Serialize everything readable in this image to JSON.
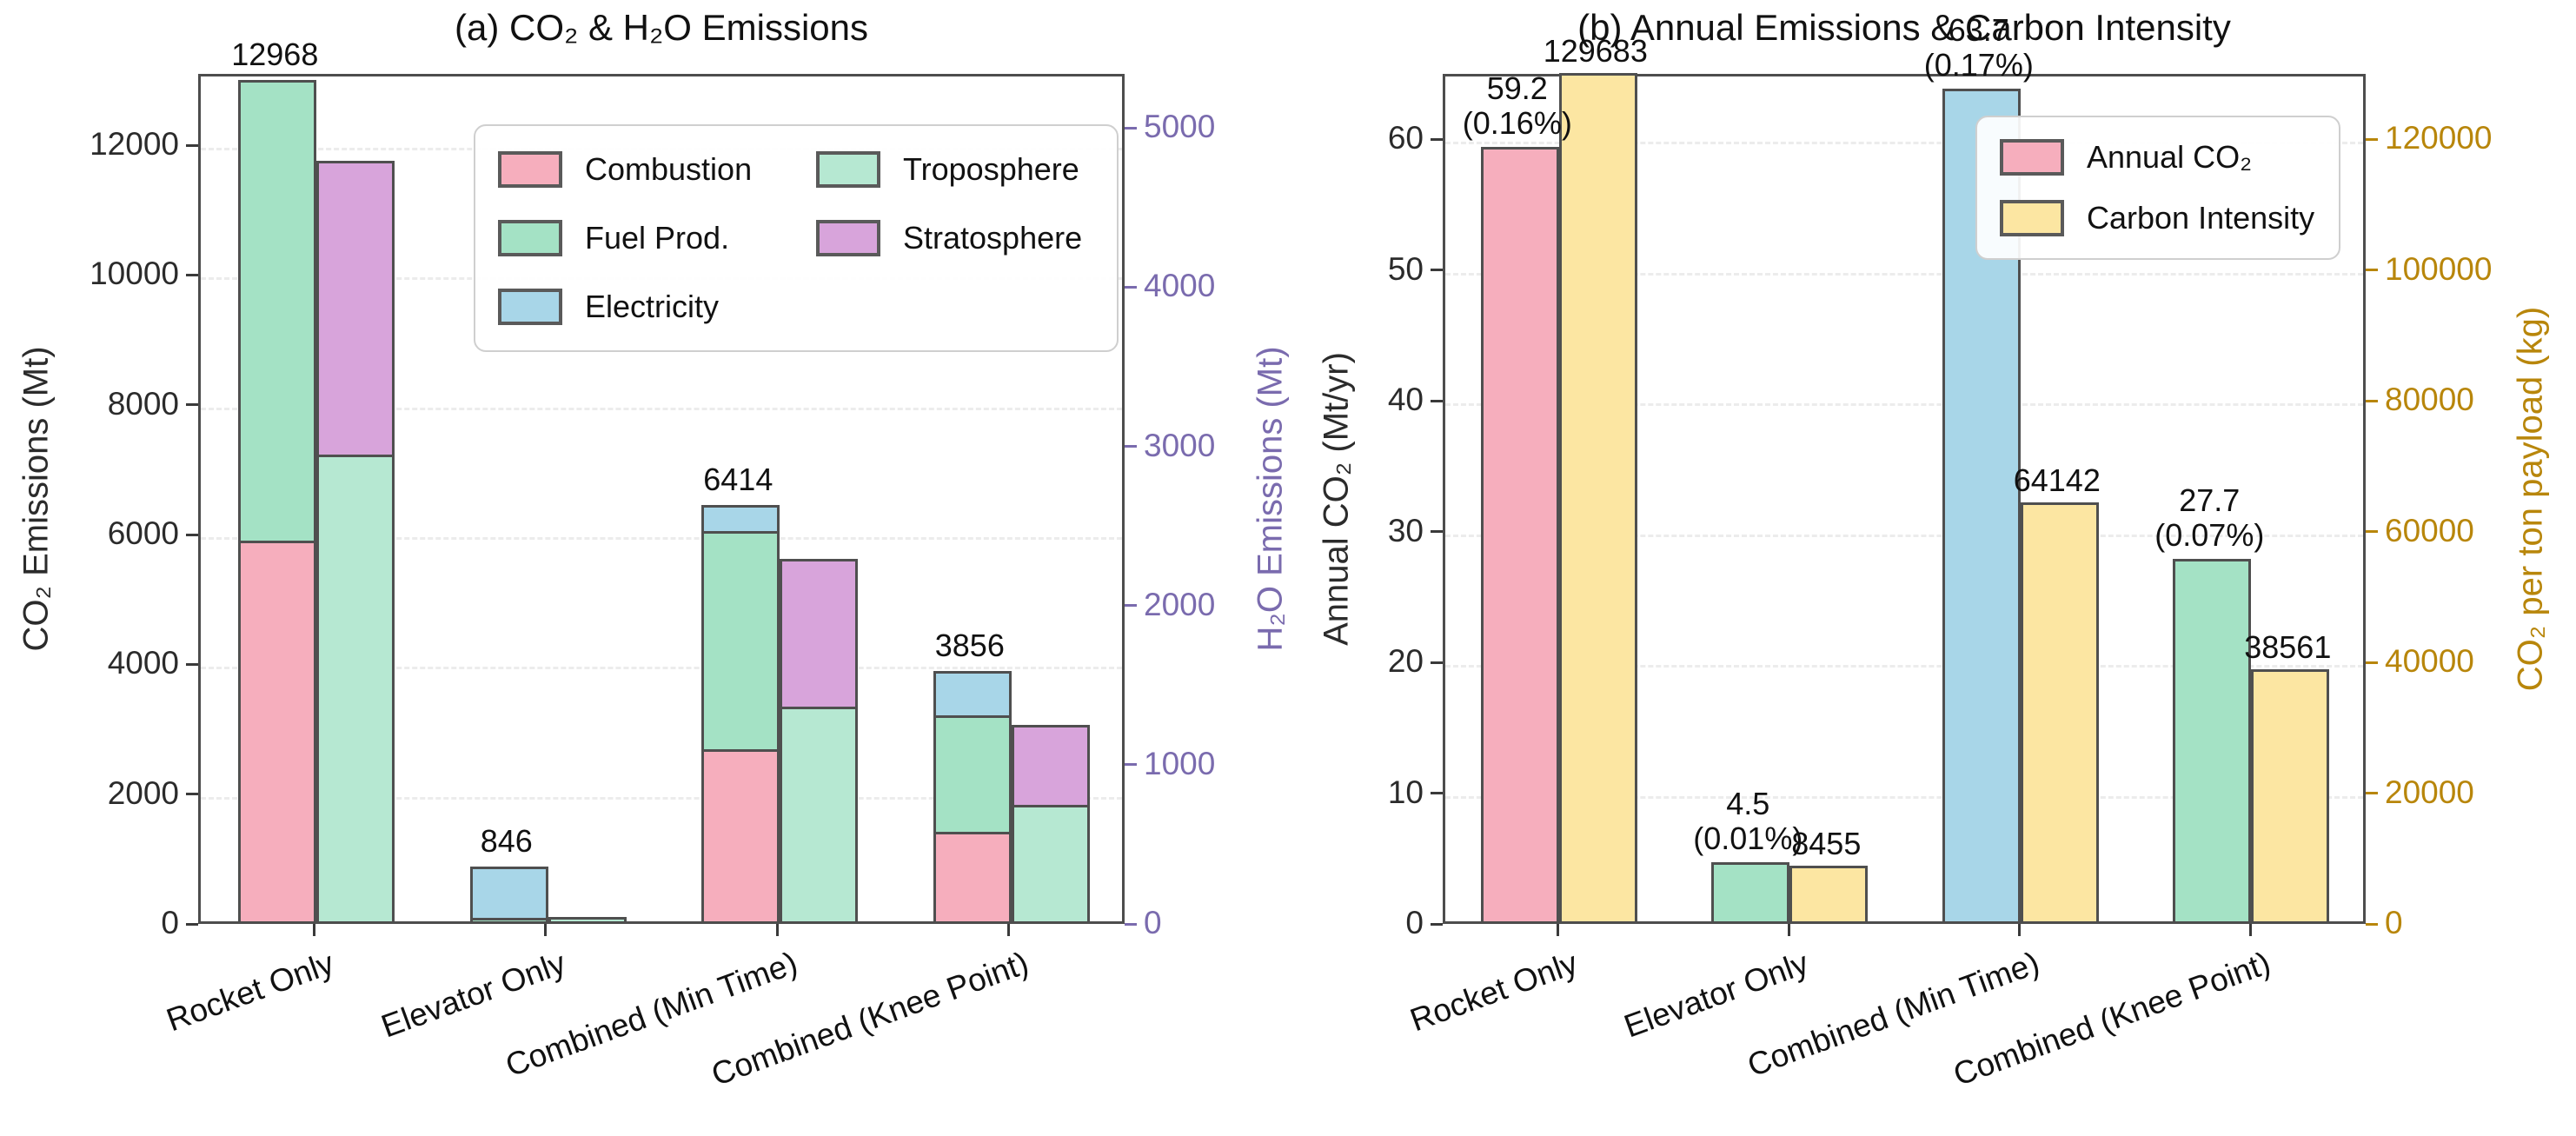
{
  "figure": {
    "background": "#ffffff",
    "spine_color": "#4d4d4d",
    "grid_color": "#ececec",
    "bar_edge_color": "#4f4f4f"
  },
  "chart_data": [
    {
      "type": "bar",
      "subtype": "dual-axis stacked bars",
      "title": "(a) CO₂ & H₂O Emissions",
      "categories": [
        "Rocket Only",
        "Elevator Only",
        "Combined (Min Time)",
        "Combined (Knee Point)"
      ],
      "left_axis": {
        "label": "CO₂ Emissions (Mt)",
        "ticks": [
          0,
          2000,
          4000,
          6000,
          8000,
          10000,
          12000
        ],
        "max": 13100,
        "color": "#2b2b2b",
        "grid": true
      },
      "right_axis": {
        "label": "H₂O Emissions (Mt)",
        "ticks": [
          0,
          1000,
          2000,
          3000,
          4000,
          5000
        ],
        "max": 5340,
        "color": "#7a6bae",
        "grid": false
      },
      "co2_stack": {
        "series": [
          {
            "name": "Combustion",
            "color": "#f6aebd",
            "values": [
              5870,
              0,
              2650,
              1380
            ]
          },
          {
            "name": "Fuel Prod.",
            "color": "#a4e2c5",
            "values": [
              7098,
              60,
              3370,
              1800
            ]
          },
          {
            "name": "Electricity",
            "color": "#a8d6e8",
            "values": [
              0,
              786,
              394,
              676
            ]
          }
        ],
        "total_labels": [
          "12968",
          "846",
          "6414",
          "3856"
        ]
      },
      "h2o_stack": {
        "series": [
          {
            "name": "Troposphere",
            "color": "#b6e8d2",
            "values": [
              2930,
              30,
              1350,
              730
            ]
          },
          {
            "name": "Stratosphere",
            "color": "#d8a4db",
            "values": [
              1850,
              0,
              930,
              505
            ]
          }
        ]
      },
      "legend": [
        {
          "label": "Combustion",
          "color": "#f6aebd"
        },
        {
          "label": "Fuel Prod.",
          "color": "#a4e2c5"
        },
        {
          "label": "Electricity",
          "color": "#a8d6e8"
        },
        {
          "label": "Troposphere",
          "color": "#b6e8d2"
        },
        {
          "label": "Stratosphere",
          "color": "#d8a4db"
        }
      ],
      "legend_position": "upper center-right inside axes"
    },
    {
      "type": "bar",
      "subtype": "dual-axis grouped bars",
      "title": "(b) Annual Emissions & Carbon Intensity",
      "categories": [
        "Rocket Only",
        "Elevator Only",
        "Combined (Min Time)",
        "Combined (Knee Point)"
      ],
      "left_axis": {
        "label": "Annual CO₂ (Mt/yr)",
        "ticks": [
          0,
          10,
          20,
          30,
          40,
          50,
          60
        ],
        "max": 65,
        "color": "#2b2b2b",
        "grid": true
      },
      "right_axis": {
        "label": "CO₂ per ton payload (kg)",
        "ticks": [
          0,
          20000,
          40000,
          60000,
          80000,
          100000,
          120000
        ],
        "max": 130000,
        "color": "#b8860b",
        "grid": false
      },
      "annual_co2": {
        "name": "Annual CO₂",
        "values": [
          59.2,
          4.5,
          63.7,
          27.7
        ],
        "value_labels": [
          "59.2",
          "4.5",
          "63.7",
          "27.7"
        ],
        "pct_labels": [
          "(0.16%)",
          "(0.01%)",
          "(0.17%)",
          "(0.07%)"
        ],
        "bar_colors": [
          "#f6aebd",
          "#a4e2c5",
          "#a8d6e8",
          "#a4e2c5"
        ]
      },
      "carbon_intensity": {
        "name": "Carbon Intensity",
        "values": [
          129683,
          8455,
          64142,
          38561
        ],
        "value_labels": [
          "129683",
          "8455",
          "64142",
          "38561"
        ],
        "color": "#fce6a2"
      },
      "legend": [
        {
          "label": "Annual CO₂",
          "color": "#f6aebd"
        },
        {
          "label": "Carbon Intensity",
          "color": "#fce6a2"
        }
      ],
      "legend_position": "upper right inside axes"
    }
  ]
}
